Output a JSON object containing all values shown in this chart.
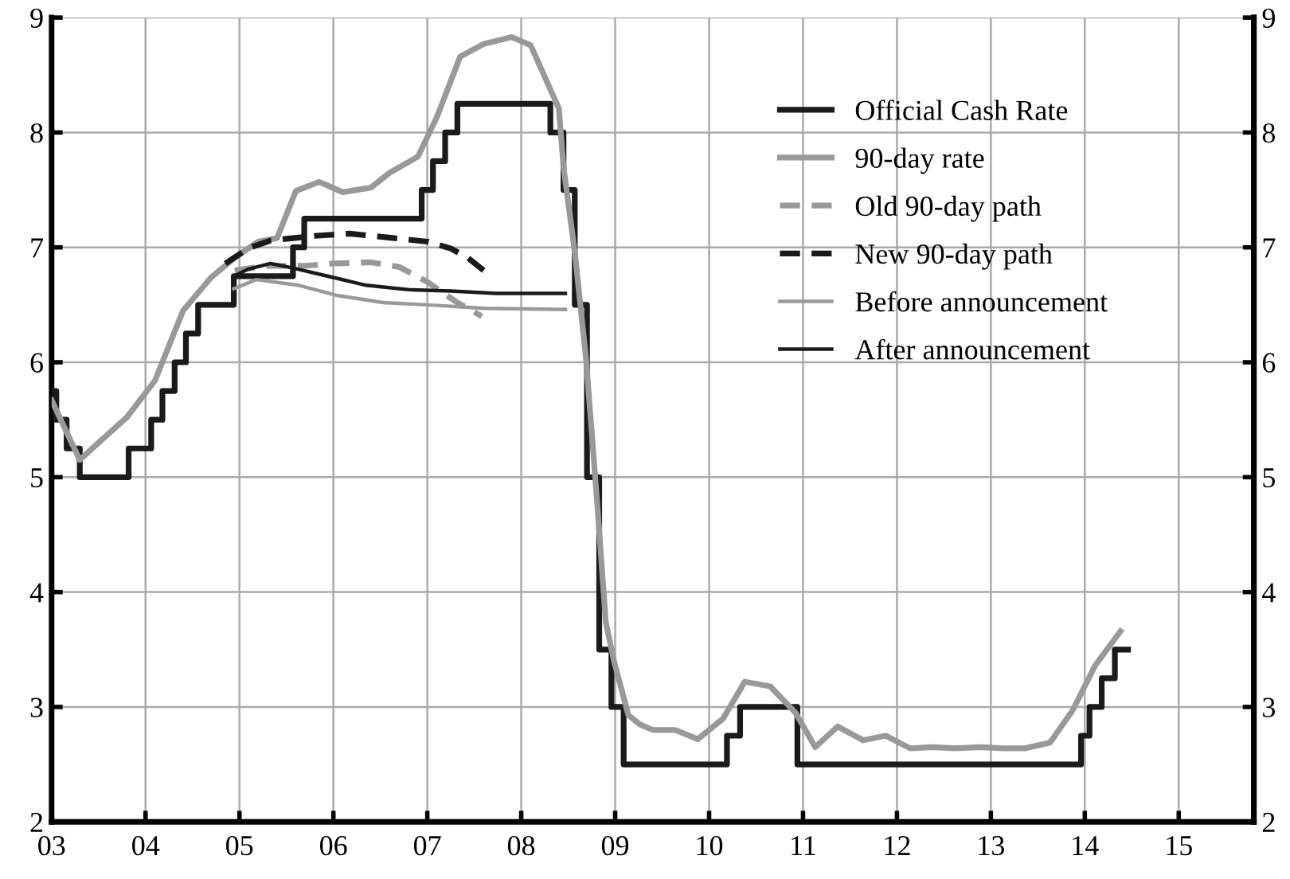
{
  "chart_data": {
    "type": "line",
    "xlim": [
      2003,
      2015.8
    ],
    "xticks": [
      {
        "value": 2003,
        "label": "03"
      },
      {
        "value": 2004,
        "label": "04"
      },
      {
        "value": 2005,
        "label": "05"
      },
      {
        "value": 2006,
        "label": "06"
      },
      {
        "value": 2007,
        "label": "07"
      },
      {
        "value": 2008,
        "label": "08"
      },
      {
        "value": 2009,
        "label": "09"
      },
      {
        "value": 2010,
        "label": "10"
      },
      {
        "value": 2011,
        "label": "11"
      },
      {
        "value": 2012,
        "label": "12"
      },
      {
        "value": 2013,
        "label": "13"
      },
      {
        "value": 2014,
        "label": "14"
      },
      {
        "value": 2015,
        "label": "15"
      }
    ],
    "ylim": [
      2,
      9
    ],
    "yticks": [
      2,
      3,
      4,
      5,
      6,
      7,
      8,
      9
    ],
    "y2lim": [
      2,
      9
    ],
    "y2ticks": [
      2,
      3,
      4,
      5,
      6,
      7,
      8,
      9
    ],
    "grid": true,
    "legend": "top right",
    "series": [
      {
        "name": "Official Cash Rate",
        "type": "step",
        "color": "#1a1a1a",
        "line_style": "solid",
        "x": [
          2003.0,
          2003.05,
          2003.16,
          2003.3,
          2003.82,
          2004.06,
          2004.18,
          2004.31,
          2004.43,
          2004.56,
          2004.94,
          2005.57,
          2005.69,
          2006.94,
          2007.06,
          2007.19,
          2007.32,
          2008.31,
          2008.45,
          2008.57,
          2008.7,
          2008.83,
          2008.96,
          2009.09,
          2010.19,
          2010.33,
          2010.94,
          2013.96,
          2014.05,
          2014.18,
          2014.32,
          2014.46
        ],
        "values": [
          5.75,
          5.5,
          5.25,
          5.0,
          5.25,
          5.5,
          5.75,
          6.0,
          6.25,
          6.5,
          6.75,
          7.0,
          7.25,
          7.5,
          7.75,
          8.0,
          8.25,
          8.0,
          7.5,
          6.5,
          5.0,
          3.5,
          3.0,
          2.5,
          2.75,
          3.0,
          2.5,
          2.75,
          3.0,
          3.25,
          3.5,
          3.5
        ]
      },
      {
        "name": "90-day rate",
        "color": "#999999",
        "line_style": "solid",
        "x": [
          2003.0,
          2003.3,
          2003.5,
          2003.8,
          2004.1,
          2004.4,
          2004.7,
          2004.95,
          2005.2,
          2005.4,
          2005.6,
          2005.85,
          2006.1,
          2006.4,
          2006.6,
          2006.9,
          2007.1,
          2007.35,
          2007.6,
          2007.9,
          2008.1,
          2008.4,
          2008.45,
          2008.57,
          2008.69,
          2008.81,
          2008.9,
          2008.99,
          2009.14,
          2009.26,
          2009.4,
          2009.64,
          2009.88,
          2010.15,
          2010.38,
          2010.65,
          2010.92,
          2011.13,
          2011.37,
          2011.64,
          2011.88,
          2012.14,
          2012.38,
          2012.62,
          2012.89,
          2013.13,
          2013.36,
          2013.63,
          2013.87,
          2014.11,
          2014.38
        ],
        "values": [
          5.67,
          5.15,
          5.3,
          5.52,
          5.84,
          6.45,
          6.74,
          6.91,
          7.05,
          7.08,
          7.49,
          7.57,
          7.48,
          7.52,
          7.65,
          7.79,
          8.13,
          8.66,
          8.77,
          8.83,
          8.76,
          8.21,
          7.7,
          6.96,
          6.03,
          4.76,
          3.74,
          3.39,
          2.93,
          2.85,
          2.8,
          2.8,
          2.72,
          2.9,
          3.22,
          3.18,
          2.95,
          2.65,
          2.83,
          2.71,
          2.75,
          2.64,
          2.65,
          2.64,
          2.65,
          2.64,
          2.64,
          2.69,
          2.97,
          3.36,
          3.66
        ]
      },
      {
        "name": "Old 90-day path",
        "color": "#999999",
        "line_style": "dashed",
        "x": [
          2004.95,
          2005.3,
          2005.7,
          2006.0,
          2006.4,
          2006.7,
          2007.0,
          2007.3,
          2007.58
        ],
        "values": [
          6.8,
          6.84,
          6.84,
          6.86,
          6.87,
          6.83,
          6.7,
          6.53,
          6.4
        ]
      },
      {
        "name": "New 90-day path",
        "color": "#1a1a1a",
        "line_style": "dashed",
        "x": [
          2004.85,
          2005.09,
          2005.33,
          2005.8,
          2006.17,
          2006.65,
          2007.0,
          2007.25,
          2007.43,
          2007.6
        ],
        "values": [
          6.86,
          6.99,
          7.06,
          7.1,
          7.12,
          7.08,
          7.05,
          6.99,
          6.91,
          6.8
        ]
      },
      {
        "name": "Before announcement",
        "color": "#999999",
        "line_style": "solid",
        "x": [
          2004.94,
          2005.18,
          2005.63,
          2006.05,
          2006.53,
          2007.0,
          2007.61,
          2008.47
        ],
        "values": [
          6.64,
          6.72,
          6.67,
          6.58,
          6.52,
          6.5,
          6.47,
          6.46
        ]
      },
      {
        "name": "After announcement",
        "color": "#1a1a1a",
        "line_style": "solid",
        "x": [
          2004.97,
          2005.09,
          2005.33,
          2005.57,
          2005.99,
          2006.35,
          2006.83,
          2007.25,
          2007.73,
          2008.47
        ],
        "values": [
          6.76,
          6.81,
          6.86,
          6.82,
          6.74,
          6.67,
          6.63,
          6.62,
          6.6,
          6.6
        ]
      }
    ]
  }
}
